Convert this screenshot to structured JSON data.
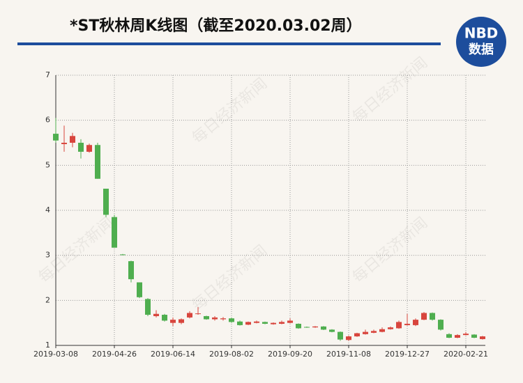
{
  "header": {
    "title": "*ST秋林周K线图（截至2020.03.02周）",
    "logo_top": "NBD",
    "logo_bottom": "数据"
  },
  "watermark": "每日经济新闻",
  "chart_data": {
    "type": "candlestick",
    "categories": [
      "2019-03-08",
      null,
      null,
      null,
      null,
      null,
      null,
      "2019-04-26",
      null,
      null,
      null,
      null,
      null,
      null,
      "2019-06-14",
      null,
      null,
      null,
      null,
      null,
      null,
      "2019-08-02",
      null,
      null,
      null,
      null,
      null,
      null,
      "2019-09-20",
      null,
      null,
      null,
      null,
      null,
      null,
      "2019-11-08",
      null,
      null,
      null,
      null,
      null,
      null,
      "2019-12-27",
      null,
      null,
      null,
      null,
      null,
      null,
      "2020-02-21",
      null,
      null
    ],
    "series": [
      {
        "open": [
          5.7,
          5.47,
          5.5,
          5.5,
          5.3,
          5.45,
          4.48,
          3.85,
          3.02,
          2.87,
          2.4,
          2.03,
          1.65,
          1.68,
          1.5,
          1.5,
          1.62,
          1.7,
          1.65,
          1.58,
          1.58,
          1.6,
          1.53,
          1.46,
          1.5,
          1.52,
          1.47,
          1.48,
          1.5,
          1.48,
          1.41,
          1.4,
          1.42,
          1.35,
          1.3,
          1.12,
          1.2,
          1.25,
          1.28,
          1.3,
          1.36,
          1.38,
          1.45,
          1.45,
          1.57,
          1.72,
          1.57,
          1.25,
          1.17,
          1.23,
          1.24,
          1.14
        ],
        "high": [
          6.05,
          5.88,
          5.72,
          5.58,
          5.48,
          5.5,
          4.48,
          3.9,
          3.03,
          2.88,
          2.4,
          2.05,
          1.78,
          1.7,
          1.62,
          1.6,
          1.76,
          1.85,
          1.66,
          1.65,
          1.63,
          1.62,
          1.55,
          1.53,
          1.55,
          1.53,
          1.51,
          1.55,
          1.6,
          1.49,
          1.42,
          1.43,
          1.43,
          1.36,
          1.31,
          1.22,
          1.28,
          1.35,
          1.35,
          1.4,
          1.42,
          1.55,
          1.7,
          1.6,
          1.74,
          1.73,
          1.58,
          1.27,
          1.25,
          1.3,
          1.25,
          1.21
        ],
        "low": [
          5.5,
          5.3,
          5.4,
          5.15,
          5.28,
          4.7,
          3.85,
          3.17,
          3.0,
          2.4,
          2.05,
          1.65,
          1.62,
          1.53,
          1.43,
          1.47,
          1.6,
          1.68,
          1.57,
          1.55,
          1.55,
          1.5,
          1.44,
          1.45,
          1.49,
          1.47,
          1.46,
          1.47,
          1.49,
          1.37,
          1.39,
          1.39,
          1.34,
          1.29,
          1.1,
          1.1,
          1.19,
          1.24,
          1.27,
          1.29,
          1.35,
          1.37,
          1.44,
          1.43,
          1.56,
          1.55,
          1.33,
          1.16,
          1.16,
          1.22,
          1.16,
          1.13
        ],
        "close": [
          5.55,
          5.5,
          5.65,
          5.3,
          5.45,
          4.7,
          3.9,
          3.17,
          3.01,
          2.47,
          2.07,
          1.68,
          1.7,
          1.55,
          1.57,
          1.58,
          1.72,
          1.71,
          1.58,
          1.62,
          1.6,
          1.52,
          1.45,
          1.52,
          1.53,
          1.48,
          1.5,
          1.52,
          1.55,
          1.38,
          1.4,
          1.42,
          1.35,
          1.3,
          1.13,
          1.2,
          1.27,
          1.3,
          1.32,
          1.36,
          1.4,
          1.52,
          1.48,
          1.57,
          1.72,
          1.57,
          1.35,
          1.17,
          1.23,
          1.26,
          1.17,
          1.2
        ]
      }
    ],
    "up_color": "#d8453d",
    "down_color": "#4fae4f",
    "ylim": [
      1,
      7
    ],
    "yticks": [
      1,
      2,
      3,
      4,
      5,
      6,
      7
    ],
    "grid": true
  }
}
